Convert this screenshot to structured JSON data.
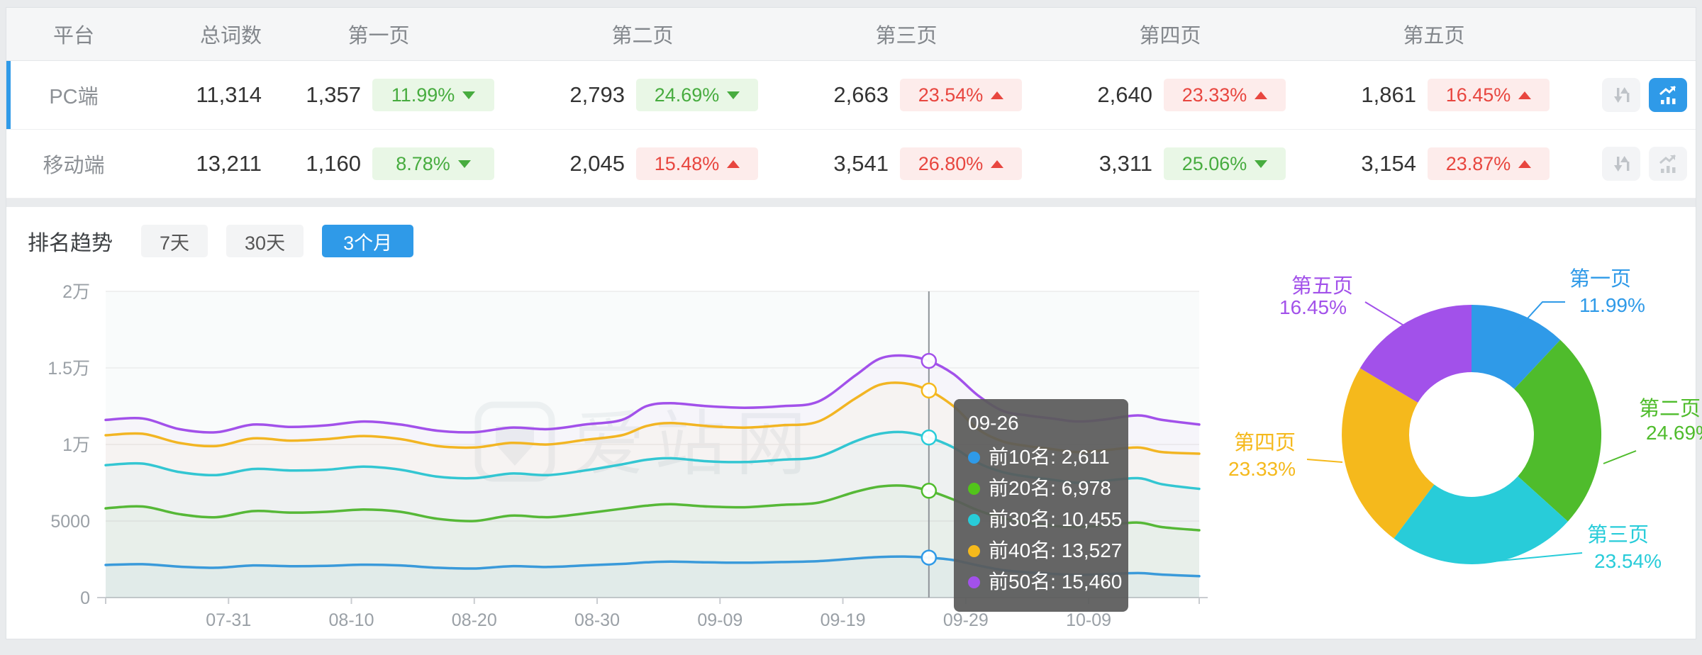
{
  "theme": {
    "accent": "#2f9ae8",
    "up_red": "#e8463f",
    "down_green": "#47ac3f"
  },
  "watermark": "爱站网",
  "table": {
    "headers": {
      "platform": "平台",
      "total": "总词数",
      "pages": [
        "第一页",
        "第二页",
        "第三页",
        "第四页",
        "第五页"
      ]
    },
    "rows": [
      {
        "platform": "PC端",
        "total": "11,314",
        "pages": [
          {
            "count": "1,357",
            "pct": "11.99%",
            "dir": "down",
            "tone": "green"
          },
          {
            "count": "2,793",
            "pct": "24.69%",
            "dir": "down",
            "tone": "green"
          },
          {
            "count": "2,663",
            "pct": "23.54%",
            "dir": "up",
            "tone": "red"
          },
          {
            "count": "2,640",
            "pct": "23.33%",
            "dir": "up",
            "tone": "red"
          },
          {
            "count": "1,861",
            "pct": "16.45%",
            "dir": "up",
            "tone": "red"
          }
        ]
      },
      {
        "platform": "移动端",
        "total": "13,211",
        "pages": [
          {
            "count": "1,160",
            "pct": "8.78%",
            "dir": "down",
            "tone": "green"
          },
          {
            "count": "2,045",
            "pct": "15.48%",
            "dir": "up",
            "tone": "red"
          },
          {
            "count": "3,541",
            "pct": "26.80%",
            "dir": "up",
            "tone": "red"
          },
          {
            "count": "3,311",
            "pct": "25.06%",
            "dir": "down",
            "tone": "green"
          },
          {
            "count": "3,154",
            "pct": "23.87%",
            "dir": "up",
            "tone": "red"
          }
        ]
      }
    ]
  },
  "trend": {
    "title": "排名趋势",
    "tabs": [
      {
        "label": "7天",
        "active": false
      },
      {
        "label": "30天",
        "active": false
      },
      {
        "label": "3个月",
        "active": true
      }
    ]
  },
  "tooltip": {
    "title": "09-26",
    "rows": [
      {
        "text": "前10名: 2,611",
        "color": "#2f9ae8"
      },
      {
        "text": "前20名: 6,978",
        "color": "#52c41a"
      },
      {
        "text": "前30名: 10,455",
        "color": "#28ccd9"
      },
      {
        "text": "前40名: 13,527",
        "color": "#f5b91c"
      },
      {
        "text": "前50名: 15,460",
        "color": "#a251ea"
      }
    ]
  },
  "chart_data": [
    {
      "type": "line",
      "title": "排名趋势",
      "xlabel": "",
      "ylabel": "",
      "grid": true,
      "ylim": [
        0,
        20000
      ],
      "y_ticks": [
        {
          "v": 0,
          "label": "0"
        },
        {
          "v": 5000,
          "label": "5000"
        },
        {
          "v": 10000,
          "label": "1万"
        },
        {
          "v": 15000,
          "label": "1.5万"
        },
        {
          "v": 20000,
          "label": "2万"
        }
      ],
      "x_tick_days": [
        10,
        20,
        30,
        40,
        50,
        60,
        70,
        80
      ],
      "x_tick_labels": [
        "07-31",
        "08-10",
        "08-20",
        "08-30",
        "09-09",
        "09-19",
        "09-29",
        "10-09"
      ],
      "day_range": [
        0,
        89
      ],
      "sample_days": [
        0,
        3,
        6,
        9,
        12,
        15,
        18,
        21,
        24,
        27,
        30,
        33,
        36,
        39,
        42,
        44,
        46,
        49,
        52,
        55,
        58,
        61,
        63,
        65,
        67,
        69,
        71,
        73,
        75,
        77,
        79,
        81,
        84,
        86,
        89
      ],
      "series": [
        {
          "name": "前10名",
          "color": "#2f9ae8",
          "values": [
            2130,
            2180,
            2020,
            1950,
            2100,
            2050,
            2070,
            2150,
            2100,
            1950,
            1900,
            2050,
            2000,
            2100,
            2200,
            2300,
            2350,
            2300,
            2280,
            2320,
            2380,
            2550,
            2650,
            2680,
            2611,
            2450,
            2100,
            1800,
            1650,
            1550,
            1480,
            1520,
            1600,
            1500,
            1400
          ]
        },
        {
          "name": "前20名",
          "color": "#4fbc2c",
          "values": [
            5830,
            5950,
            5450,
            5250,
            5650,
            5550,
            5600,
            5750,
            5600,
            5150,
            5000,
            5350,
            5250,
            5500,
            5800,
            6000,
            6100,
            5950,
            5900,
            6050,
            6200,
            6900,
            7250,
            7300,
            6978,
            6400,
            5700,
            5200,
            4900,
            4700,
            4600,
            4700,
            4900,
            4600,
            4400
          ]
        },
        {
          "name": "前30名",
          "color": "#28ccd9",
          "values": [
            8650,
            8750,
            8200,
            8000,
            8400,
            8300,
            8350,
            8550,
            8350,
            7900,
            7800,
            8100,
            8000,
            8300,
            8700,
            9000,
            9100,
            8900,
            8850,
            9000,
            9200,
            10200,
            10700,
            10800,
            10455,
            9800,
            8800,
            8200,
            7900,
            7700,
            7500,
            7600,
            7800,
            7400,
            7100
          ]
        },
        {
          "name": "前40名",
          "color": "#f5b91c",
          "values": [
            10600,
            10700,
            10100,
            9900,
            10400,
            10250,
            10350,
            10550,
            10350,
            9900,
            9800,
            10100,
            10000,
            10300,
            10600,
            11200,
            11400,
            11200,
            11100,
            11250,
            11500,
            13000,
            13900,
            14000,
            13527,
            12500,
            11000,
            10200,
            9900,
            9700,
            9500,
            9600,
            9800,
            9500,
            9400
          ]
        },
        {
          "name": "前50名",
          "color": "#a251ea",
          "values": [
            11600,
            11700,
            11000,
            10800,
            11300,
            11150,
            11250,
            11500,
            11300,
            10900,
            10800,
            11100,
            11000,
            11300,
            11600,
            12500,
            12700,
            12500,
            12400,
            12500,
            12800,
            14500,
            15600,
            15800,
            15460,
            14600,
            13200,
            12200,
            11900,
            11700,
            11500,
            11600,
            11900,
            11600,
            11300
          ]
        }
      ],
      "crosshair": {
        "day": 67,
        "label": "09-26",
        "values": [
          2611,
          6978,
          10455,
          13527,
          15460
        ]
      }
    },
    {
      "type": "pie",
      "donut": true,
      "legend_position": "labels-outside",
      "slices": [
        {
          "label": "第一页",
          "pct": 11.99,
          "pct_label": "11.99%",
          "color": "#2f9ae8"
        },
        {
          "label": "第二页",
          "pct": 24.69,
          "pct_label": "24.69%",
          "color": "#4fbc2c"
        },
        {
          "label": "第三页",
          "pct": 23.54,
          "pct_label": "23.54%",
          "color": "#28ccd9"
        },
        {
          "label": "第四页",
          "pct": 23.33,
          "pct_label": "23.33%",
          "color": "#f5b91c"
        },
        {
          "label": "第五页",
          "pct": 16.45,
          "pct_label": "16.45%",
          "color": "#a251ea"
        }
      ]
    }
  ]
}
